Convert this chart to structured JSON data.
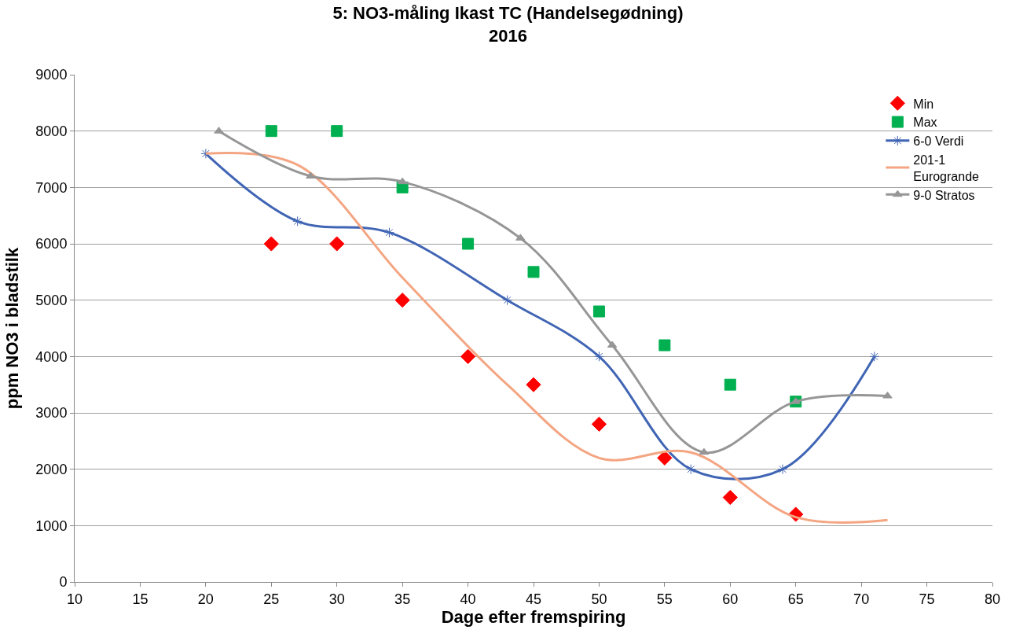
{
  "chart_data": {
    "type": "line",
    "title": "5: NO3-måling Ikast TC (Handelsegødning)",
    "subtitle": "2016",
    "xlabel": "Dage efter fremspiring",
    "ylabel": "ppm NO3 i bladstilk",
    "xlim": [
      10,
      80
    ],
    "xticks": [
      10,
      15,
      20,
      25,
      30,
      35,
      40,
      45,
      50,
      55,
      60,
      65,
      70,
      75,
      80
    ],
    "ylim": [
      0,
      9000
    ],
    "yticks": [
      0,
      1000,
      2000,
      3000,
      4000,
      5000,
      6000,
      7000,
      8000,
      9000
    ],
    "grid": "y",
    "legend": "right",
    "series": [
      {
        "name": "Min",
        "type": "scatter",
        "marker": "diamond",
        "color": "#ff0000",
        "x": [
          25,
          30,
          35,
          40,
          45,
          50,
          55,
          60,
          65
        ],
        "values": [
          6000,
          6000,
          5000,
          4000,
          3500,
          2800,
          2200,
          1500,
          1200
        ]
      },
      {
        "name": "Max",
        "type": "scatter",
        "marker": "square",
        "color": "#00b050",
        "x": [
          25,
          30,
          35,
          40,
          45,
          50,
          55,
          60,
          65
        ],
        "values": [
          8000,
          8000,
          7000,
          6000,
          5500,
          4800,
          4200,
          3500,
          3200
        ]
      },
      {
        "name": "6-0 Verdi",
        "marker": "cross",
        "color": "#4065b4",
        "x": [
          20,
          27,
          34,
          43,
          50,
          57,
          64,
          71
        ],
        "values": [
          7600,
          6400,
          6200,
          5000,
          4000,
          2000,
          2000,
          4000
        ]
      },
      {
        "name": "201-1 Eurogrande",
        "marker": "none",
        "color": "#f4a582",
        "x": [
          20,
          27,
          35,
          43,
          50,
          57,
          65,
          72
        ],
        "values": [
          7600,
          7400,
          5400,
          3500,
          2200,
          2300,
          1150,
          1100
        ]
      },
      {
        "name": "9-0 Stratos",
        "marker": "triangle",
        "color": "#969696",
        "x": [
          21,
          28,
          35,
          44,
          51,
          58,
          65,
          72
        ],
        "values": [
          8000,
          7200,
          7100,
          6100,
          4200,
          2300,
          3200,
          3300
        ]
      }
    ]
  }
}
